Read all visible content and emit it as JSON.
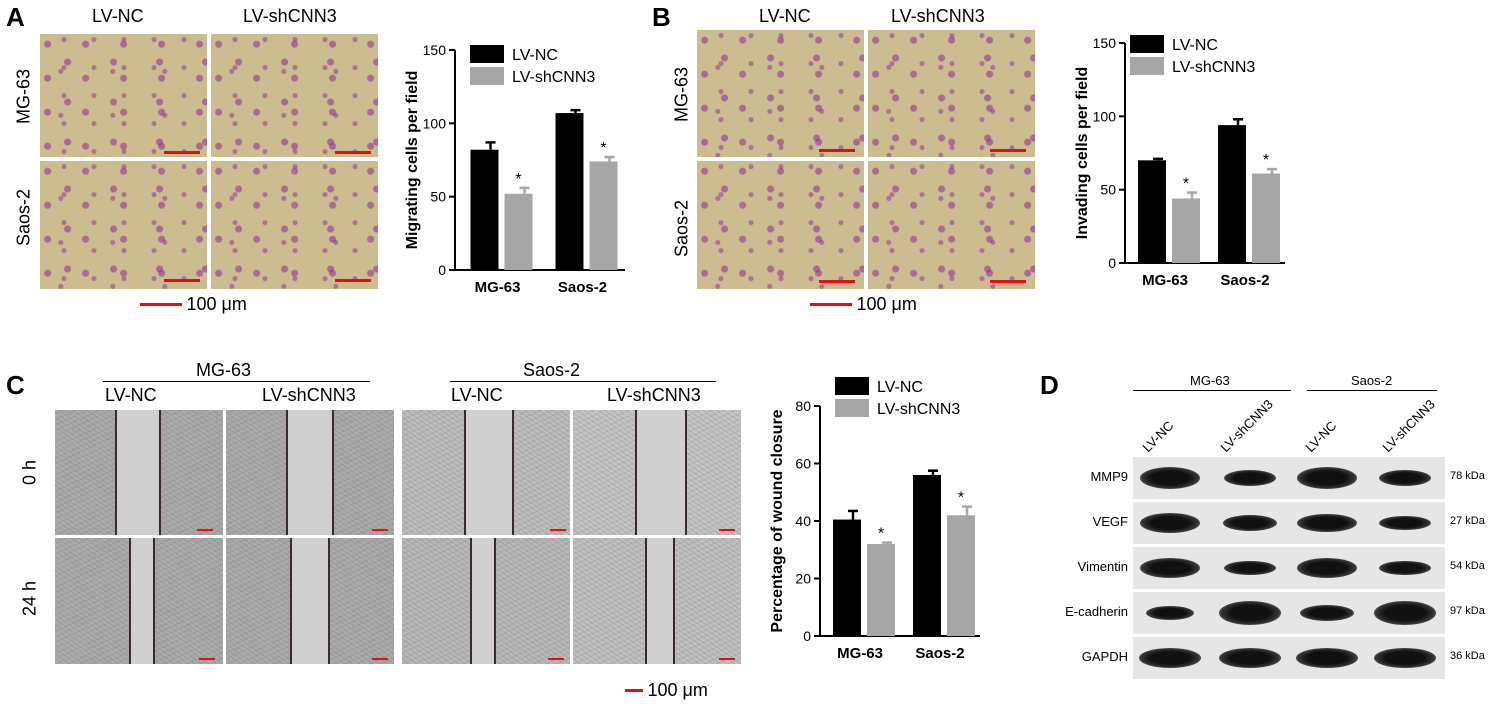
{
  "panels": {
    "A": {
      "letter": "A",
      "col_headers": [
        "LV-NC",
        "LV-shCNN3"
      ],
      "row_labels": [
        "MG-63",
        "Saos-2"
      ],
      "scale_label": "100 μm"
    },
    "B": {
      "letter": "B",
      "col_headers": [
        "LV-NC",
        "LV-shCNN3"
      ],
      "row_labels": [
        "MG-63",
        "Saos-2"
      ],
      "scale_label": "100 μm"
    },
    "C": {
      "letter": "C",
      "group_headers": [
        "MG-63",
        "Saos-2"
      ],
      "col_headers": [
        "LV-NC",
        "LV-shCNN3",
        "LV-NC",
        "LV-shCNN3"
      ],
      "row_labels": [
        "0 h",
        "24 h"
      ],
      "scale_label": "100 μm"
    },
    "D": {
      "letter": "D",
      "group_headers": [
        "MG-63",
        "Saos-2"
      ],
      "lane_labels": [
        "LV-NC",
        "LV-shCNN3",
        "LV-NC",
        "LV-shCNN3"
      ],
      "proteins": [
        {
          "name": "MMP9",
          "kda": "78 kDa"
        },
        {
          "name": "VEGF",
          "kda": "27 kDa"
        },
        {
          "name": "Vimentin",
          "kda": "54 kDa"
        },
        {
          "name": "E-cadherin",
          "kda": "97 kDa"
        },
        {
          "name": "GAPDH",
          "kda": "36 kDa"
        }
      ]
    }
  },
  "colors": {
    "nc": "#000000",
    "sh": "#a6a6a6",
    "scale": "#e01010"
  },
  "chart_data": [
    {
      "type": "bar",
      "categories": [
        "MG-63",
        "Saos-2"
      ],
      "series": [
        {
          "name": "LV-NC",
          "values": [
            82,
            107
          ],
          "errors": [
            5,
            2
          ]
        },
        {
          "name": "LV-shCNN3",
          "values": [
            52,
            74
          ],
          "errors": [
            4,
            3
          ],
          "significance": [
            "*",
            "*"
          ]
        }
      ],
      "ylabel": "Migrating cells per field",
      "ylim": [
        0,
        150
      ],
      "yticks": [
        0,
        50,
        100,
        150
      ],
      "legend": "top-right"
    },
    {
      "type": "bar",
      "categories": [
        "MG-63",
        "Saos-2"
      ],
      "series": [
        {
          "name": "LV-NC",
          "values": [
            70,
            94
          ],
          "errors": [
            1,
            4
          ]
        },
        {
          "name": "LV-shCNN3",
          "values": [
            44,
            61
          ],
          "errors": [
            4,
            3
          ],
          "significance": [
            "*",
            "*"
          ]
        }
      ],
      "ylabel": "Invading cells per field",
      "ylim": [
        0,
        150
      ],
      "yticks": [
        0,
        50,
        100,
        150
      ],
      "legend": "top-right"
    },
    {
      "type": "bar",
      "categories": [
        "MG-63",
        "Saos-2"
      ],
      "series": [
        {
          "name": "LV-NC",
          "values": [
            40.5,
            56
          ],
          "errors": [
            3,
            1.5
          ]
        },
        {
          "name": "LV-shCNN3",
          "values": [
            32,
            42
          ],
          "errors": [
            0.5,
            3
          ],
          "significance": [
            "*",
            "*"
          ]
        }
      ],
      "ylabel": "Percentage of wound closure",
      "ylim": [
        0,
        80
      ],
      "yticks": [
        0,
        20,
        40,
        60,
        80
      ],
      "legend": "top-right"
    }
  ]
}
